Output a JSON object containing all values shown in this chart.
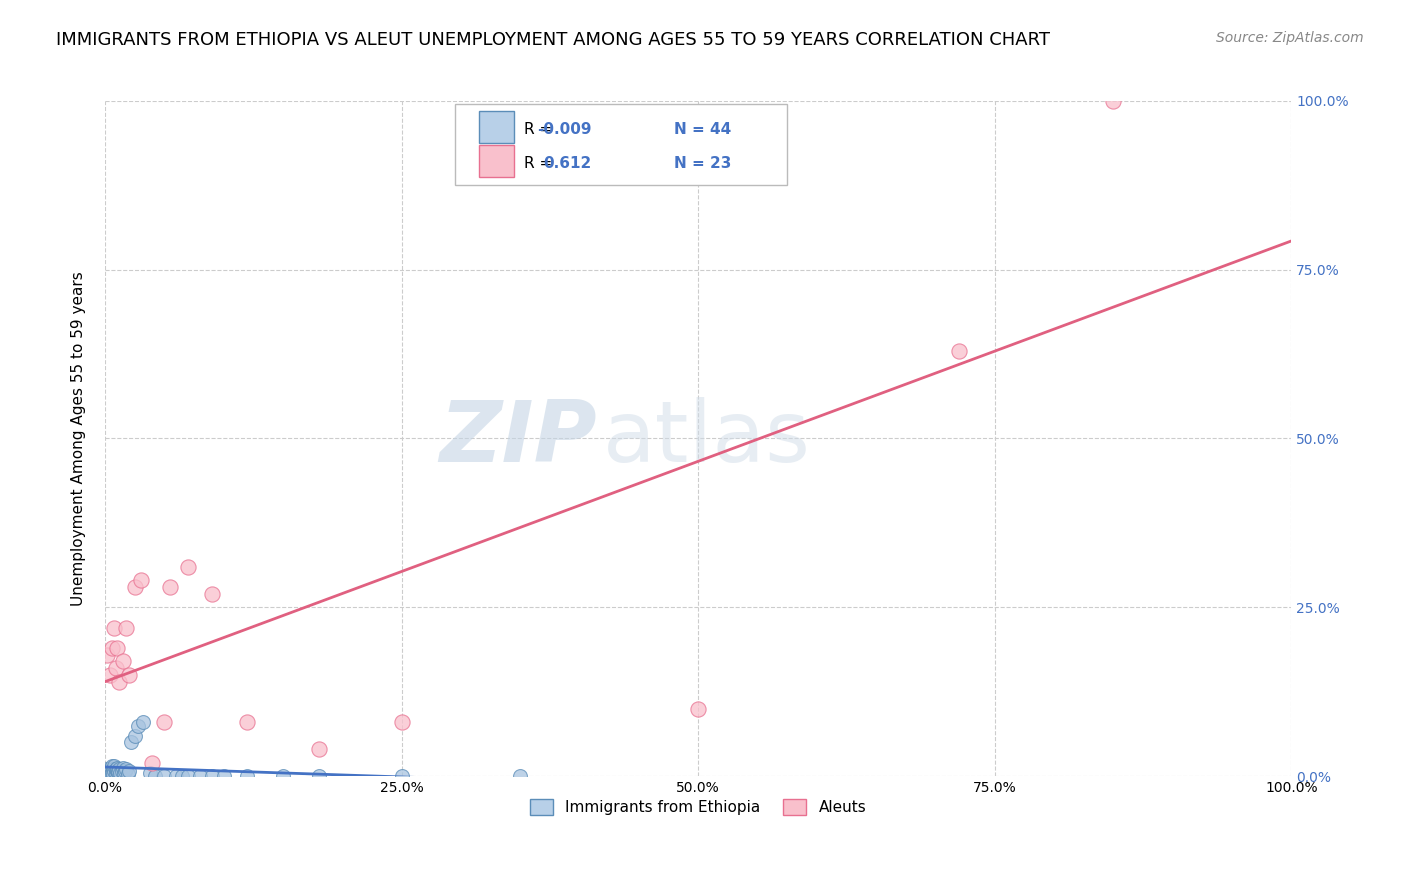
{
  "title": "IMMIGRANTS FROM ETHIOPIA VS ALEUT UNEMPLOYMENT AMONG AGES 55 TO 59 YEARS CORRELATION CHART",
  "source": "Source: ZipAtlas.com",
  "ylabel": "Unemployment Among Ages 55 to 59 years",
  "xlim": [
    0,
    1
  ],
  "ylim": [
    0,
    1
  ],
  "xticks": [
    0.0,
    0.25,
    0.5,
    0.75,
    1.0
  ],
  "xtick_labels": [
    "0.0%",
    "25.0%",
    "50.0%",
    "75.0%",
    "100.0%"
  ],
  "ytick_labels": [
    "0.0%",
    "25.0%",
    "50.0%",
    "75.0%",
    "100.0%"
  ],
  "yticks": [
    0.0,
    0.25,
    0.5,
    0.75,
    1.0
  ],
  "blue_scatter_x": [
    0.002,
    0.003,
    0.004,
    0.005,
    0.005,
    0.006,
    0.006,
    0.007,
    0.007,
    0.008,
    0.008,
    0.009,
    0.009,
    0.01,
    0.01,
    0.011,
    0.011,
    0.012,
    0.013,
    0.014,
    0.015,
    0.016,
    0.017,
    0.018,
    0.019,
    0.02,
    0.022,
    0.025,
    0.028,
    0.032,
    0.038,
    0.042,
    0.05,
    0.06,
    0.065,
    0.07,
    0.08,
    0.09,
    0.1,
    0.12,
    0.15,
    0.18,
    0.25,
    0.35
  ],
  "blue_scatter_y": [
    0.01,
    0.005,
    0.008,
    0.012,
    0.003,
    0.015,
    0.005,
    0.01,
    0.003,
    0.008,
    0.015,
    0.005,
    0.01,
    0.008,
    0.012,
    0.005,
    0.008,
    0.01,
    0.005,
    0.008,
    0.012,
    0.005,
    0.008,
    0.01,
    0.003,
    0.008,
    0.05,
    0.06,
    0.075,
    0.08,
    0.005,
    0.0,
    0.0,
    0.0,
    0.0,
    0.0,
    0.0,
    0.0,
    0.0,
    0.0,
    0.0,
    0.0,
    0.0,
    0.0
  ],
  "pink_scatter_x": [
    0.002,
    0.004,
    0.006,
    0.008,
    0.009,
    0.01,
    0.012,
    0.015,
    0.018,
    0.02,
    0.025,
    0.03,
    0.04,
    0.05,
    0.055,
    0.07,
    0.09,
    0.12,
    0.18,
    0.25,
    0.5,
    0.72,
    0.85
  ],
  "pink_scatter_y": [
    0.18,
    0.15,
    0.19,
    0.22,
    0.16,
    0.19,
    0.14,
    0.17,
    0.22,
    0.15,
    0.28,
    0.29,
    0.02,
    0.08,
    0.28,
    0.31,
    0.27,
    0.08,
    0.04,
    0.08,
    0.1,
    0.63,
    1.0
  ],
  "blue_R": -0.009,
  "blue_N": 44,
  "pink_R": 0.612,
  "pink_N": 23,
  "blue_scatter_color": "#a8c4e0",
  "blue_edge_color": "#5b8db8",
  "pink_scatter_color": "#f9c0cc",
  "pink_edge_color": "#e87090",
  "blue_line_color": "#4472c4",
  "pink_line_color": "#e06080",
  "legend_blue_fill": "#b8d0e8",
  "legend_pink_fill": "#f9c0cc",
  "watermark_zip": "ZIP",
  "watermark_atlas": "atlas",
  "watermark_color": "#ccd8e8",
  "grid_color": "#cccccc",
  "title_fontsize": 13,
  "axis_label_fontsize": 11,
  "tick_fontsize": 10,
  "source_fontsize": 10,
  "right_tick_color": "#4472c4"
}
